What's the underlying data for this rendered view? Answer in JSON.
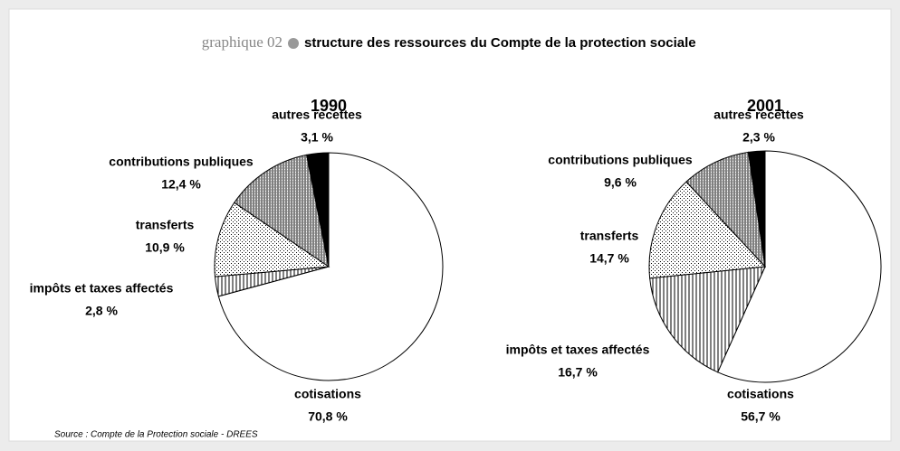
{
  "header": {
    "label": "graphique 02",
    "title": "structure des ressources du Compte de la protection sociale"
  },
  "source": "Source : Compte de la Protection sociale - DREES",
  "chart_data": [
    {
      "type": "pie",
      "title": "1990",
      "categories": [
        "cotisations",
        "impôts et taxes affectés",
        "transferts",
        "contributions publiques",
        "autres recettes"
      ],
      "values": [
        70.8,
        2.8,
        10.9,
        12.4,
        3.1
      ],
      "value_labels": [
        "70,8 %",
        "2,8 %",
        "10,9 %",
        "12,4 %",
        "3,1 %"
      ],
      "colors": [
        "#ffffff",
        "stripes",
        "dots",
        "hatch",
        "#000000"
      ]
    },
    {
      "type": "pie",
      "title": "2001",
      "categories": [
        "cotisations",
        "impôts et taxes affectés",
        "transferts",
        "contributions publiques",
        "autres recettes"
      ],
      "values": [
        56.7,
        16.7,
        14.7,
        9.6,
        2.3
      ],
      "value_labels": [
        "56,7 %",
        "16,7 %",
        "14,7 %",
        "9,6 %",
        "2,3 %"
      ],
      "colors": [
        "#ffffff",
        "stripes",
        "dots",
        "hatch",
        "#000000"
      ]
    }
  ]
}
